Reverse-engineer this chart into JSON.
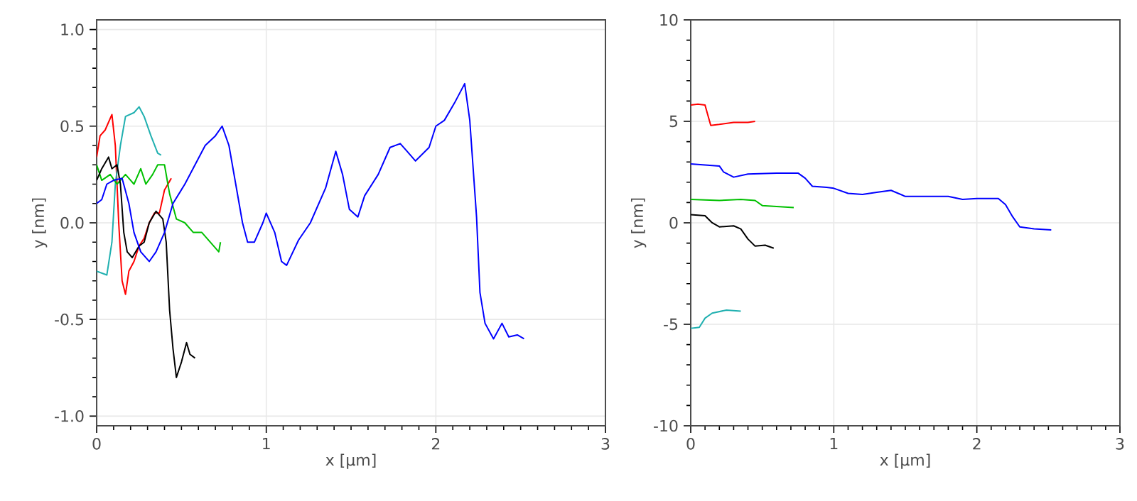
{
  "chart_data": [
    {
      "type": "line",
      "xlabel": "x [µm]",
      "ylabel": "y [nm]",
      "xlim": [
        0,
        3
      ],
      "ylim": [
        -1.05,
        1.05
      ],
      "xticks": [
        0,
        1,
        2,
        3
      ],
      "yticks": [
        {
          "value": -1.0,
          "label": "-1.0"
        },
        -0.5,
        {
          "value": 0.0,
          "label": "0.0"
        },
        0.5,
        {
          "value": 1.0,
          "label": "1.0"
        }
      ],
      "grid": true,
      "series": [
        {
          "color": "#ff0000",
          "x": [
            0,
            0.02,
            0.05,
            0.09,
            0.11,
            0.13,
            0.15,
            0.17,
            0.19,
            0.22,
            0.25,
            0.28,
            0.31,
            0.34,
            0.37,
            0.4,
            0.42,
            0.44
          ],
          "values": [
            0.34,
            0.45,
            0.48,
            0.56,
            0.4,
            0.0,
            -0.3,
            -0.37,
            -0.25,
            -0.2,
            -0.12,
            -0.08,
            0.0,
            0.05,
            0.05,
            0.17,
            0.2,
            0.23
          ]
        },
        {
          "color": "#20b0b0",
          "x": [
            0,
            0.06,
            0.09,
            0.11,
            0.14,
            0.17,
            0.22,
            0.25,
            0.28,
            0.32,
            0.36,
            0.38
          ],
          "values": [
            -0.25,
            -0.27,
            -0.1,
            0.2,
            0.4,
            0.55,
            0.57,
            0.6,
            0.55,
            0.45,
            0.36,
            0.35
          ]
        },
        {
          "color": "#00c000",
          "x": [
            0,
            0.03,
            0.08,
            0.12,
            0.17,
            0.22,
            0.26,
            0.29,
            0.33,
            0.36,
            0.4,
            0.43,
            0.47,
            0.52,
            0.57,
            0.62,
            0.67,
            0.72,
            0.73
          ],
          "values": [
            0.3,
            0.22,
            0.25,
            0.2,
            0.25,
            0.2,
            0.28,
            0.2,
            0.25,
            0.3,
            0.3,
            0.15,
            0.02,
            0.0,
            -0.05,
            -0.05,
            -0.1,
            -0.15,
            -0.1
          ]
        },
        {
          "color": "#000000",
          "x": [
            0,
            0.03,
            0.07,
            0.09,
            0.12,
            0.14,
            0.16,
            0.18,
            0.21,
            0.25,
            0.28,
            0.31,
            0.35,
            0.39,
            0.41,
            0.43,
            0.45,
            0.47,
            0.5,
            0.53,
            0.55,
            0.58
          ],
          "values": [
            0.22,
            0.28,
            0.34,
            0.28,
            0.3,
            0.2,
            -0.05,
            -0.15,
            -0.18,
            -0.12,
            -0.1,
            0.0,
            0.06,
            0.02,
            -0.1,
            -0.45,
            -0.65,
            -0.8,
            -0.72,
            -0.62,
            -0.68,
            -0.7
          ]
        },
        {
          "color": "#0000ff",
          "x": [
            0,
            0.03,
            0.06,
            0.1,
            0.15,
            0.19,
            0.22,
            0.26,
            0.31,
            0.35,
            0.4,
            0.45,
            0.52,
            0.58,
            0.64,
            0.7,
            0.74,
            0.78,
            0.82,
            0.86,
            0.89,
            0.93,
            0.98,
            1.0,
            1.05,
            1.09,
            1.12,
            1.19,
            1.26,
            1.35,
            1.41,
            1.45,
            1.49,
            1.54,
            1.58,
            1.66,
            1.73,
            1.79,
            1.83,
            1.88,
            1.96,
            2.0,
            2.05,
            2.11,
            2.17,
            2.2,
            2.24,
            2.26,
            2.29,
            2.34,
            2.39,
            2.43,
            2.48,
            2.52
          ],
          "values": [
            0.1,
            0.12,
            0.2,
            0.22,
            0.23,
            0.1,
            -0.05,
            -0.15,
            -0.2,
            -0.15,
            -0.05,
            0.1,
            0.2,
            0.3,
            0.4,
            0.45,
            0.5,
            0.4,
            0.2,
            0.0,
            -0.1,
            -0.1,
            0.0,
            0.05,
            -0.05,
            -0.2,
            -0.22,
            -0.09,
            0.0,
            0.18,
            0.37,
            0.25,
            0.07,
            0.03,
            0.14,
            0.25,
            0.39,
            0.41,
            0.37,
            0.32,
            0.39,
            0.5,
            0.53,
            0.62,
            0.72,
            0.53,
            0.03,
            -0.36,
            -0.52,
            -0.6,
            -0.52,
            -0.59,
            -0.58,
            -0.6
          ]
        }
      ]
    },
    {
      "type": "line",
      "xlabel": "x [µm]",
      "ylabel": "y [nm]",
      "xlim": [
        0,
        3
      ],
      "ylim": [
        -10,
        10
      ],
      "xticks": [
        0,
        1,
        2,
        3
      ],
      "yticks": [
        -10,
        -5,
        0,
        5,
        10
      ],
      "grid": true,
      "series": [
        {
          "color": "#ff0000",
          "x": [
            0,
            0.05,
            0.1,
            0.12,
            0.14,
            0.2,
            0.3,
            0.4,
            0.45
          ],
          "values": [
            5.8,
            5.85,
            5.8,
            5.3,
            4.8,
            4.85,
            4.95,
            4.95,
            5.0
          ]
        },
        {
          "color": "#0000ff",
          "x": [
            0,
            0.2,
            0.23,
            0.3,
            0.4,
            0.6,
            0.75,
            0.8,
            0.85,
            0.95,
            1.0,
            1.1,
            1.2,
            1.3,
            1.4,
            1.5,
            1.6,
            1.8,
            1.9,
            2.0,
            2.15,
            2.2,
            2.25,
            2.3,
            2.4,
            2.52
          ],
          "values": [
            2.9,
            2.8,
            2.5,
            2.25,
            2.4,
            2.45,
            2.45,
            2.2,
            1.8,
            1.75,
            1.7,
            1.45,
            1.4,
            1.5,
            1.6,
            1.3,
            1.3,
            1.3,
            1.15,
            1.2,
            1.2,
            0.9,
            0.3,
            -0.2,
            -0.3,
            -0.35
          ]
        },
        {
          "color": "#00c000",
          "x": [
            0,
            0.2,
            0.35,
            0.45,
            0.5,
            0.6,
            0.72
          ],
          "values": [
            1.15,
            1.1,
            1.15,
            1.1,
            0.85,
            0.8,
            0.75
          ]
        },
        {
          "color": "#000000",
          "x": [
            0,
            0.1,
            0.15,
            0.2,
            0.3,
            0.35,
            0.4,
            0.45,
            0.52,
            0.58
          ],
          "values": [
            0.4,
            0.35,
            0.0,
            -0.2,
            -0.15,
            -0.3,
            -0.8,
            -1.15,
            -1.1,
            -1.25
          ]
        },
        {
          "color": "#20b0b0",
          "x": [
            0,
            0.06,
            0.1,
            0.15,
            0.25,
            0.35
          ],
          "values": [
            -5.2,
            -5.15,
            -4.7,
            -4.45,
            -4.3,
            -4.35
          ]
        }
      ]
    }
  ]
}
